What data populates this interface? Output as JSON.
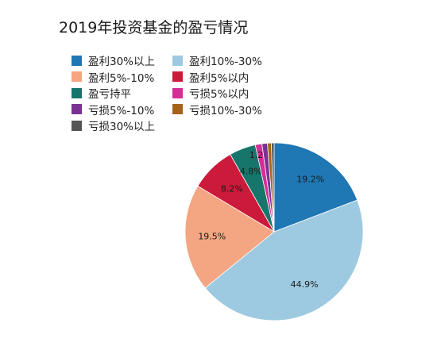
{
  "chart_data": {
    "type": "pie",
    "title": "2019年投资基金的盈亏情况",
    "legend_position": "top-left",
    "slices": [
      {
        "name": "盈利30%以上",
        "value": 19.2,
        "label": "19.2%",
        "color": "#1f77b4"
      },
      {
        "name": "盈利10%-30%",
        "value": 44.9,
        "label": "44.9%",
        "color": "#9ecae1"
      },
      {
        "name": "盈利5%-10%",
        "value": 19.5,
        "label": "19.5%",
        "color": "#f4a582"
      },
      {
        "name": "盈利5%以内",
        "value": 8.2,
        "label": "8.2%",
        "color": "#cb1a3a"
      },
      {
        "name": "盈亏持平",
        "value": 4.8,
        "label": "4.8%",
        "color": "#17766b"
      },
      {
        "name": "亏损5%以内",
        "value": 1.2,
        "label": "1.2%",
        "color": "#d62d96"
      },
      {
        "name": "亏损5%-10%",
        "value": 1.0,
        "label": "",
        "color": "#7b3294"
      },
      {
        "name": "亏损10%-30%",
        "value": 0.7,
        "label": "",
        "color": "#a6611a"
      },
      {
        "name": "亏损30%以上",
        "value": 0.5,
        "label": "",
        "color": "#555555"
      }
    ]
  }
}
